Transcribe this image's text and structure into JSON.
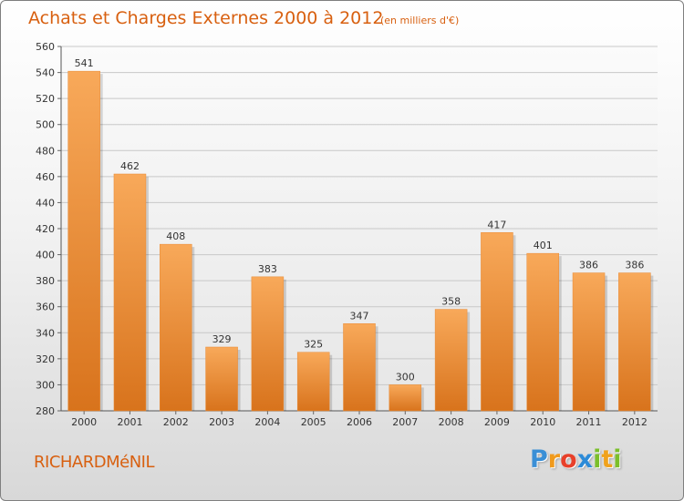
{
  "header": {
    "title": "Achats et Charges Externes 2000 à 2012",
    "subtitle": "(en milliers d'€)"
  },
  "footer": {
    "town": "RICHARDMéNIL",
    "logo_letters": [
      "P",
      "r",
      "o",
      "x",
      "i",
      "t",
      "i"
    ]
  },
  "colors": {
    "accent": "#d86010",
    "bar_light": "#f8a95a",
    "bar_dark": "#d8731c",
    "logo_letters": [
      "#3a8fd6",
      "#f09a1c",
      "#e8402a",
      "#2c8bd8",
      "#7bbf2a",
      "#f0a21c",
      "#7bbf2a"
    ]
  },
  "chart_data": {
    "type": "bar",
    "title": "Achats et Charges Externes 2000 à 2012",
    "subtitle": "(en milliers d'€)",
    "categories": [
      "2000",
      "2001",
      "2002",
      "2003",
      "2004",
      "2005",
      "2006",
      "2007",
      "2008",
      "2009",
      "2010",
      "2011",
      "2012"
    ],
    "values": [
      541,
      462,
      408,
      329,
      383,
      325,
      347,
      300,
      358,
      417,
      401,
      386,
      386
    ],
    "ylim": [
      280,
      560
    ],
    "yticks": [
      280,
      300,
      320,
      340,
      360,
      380,
      400,
      420,
      440,
      460,
      480,
      500,
      520,
      540,
      560
    ],
    "grid": true,
    "data_labels": true
  }
}
